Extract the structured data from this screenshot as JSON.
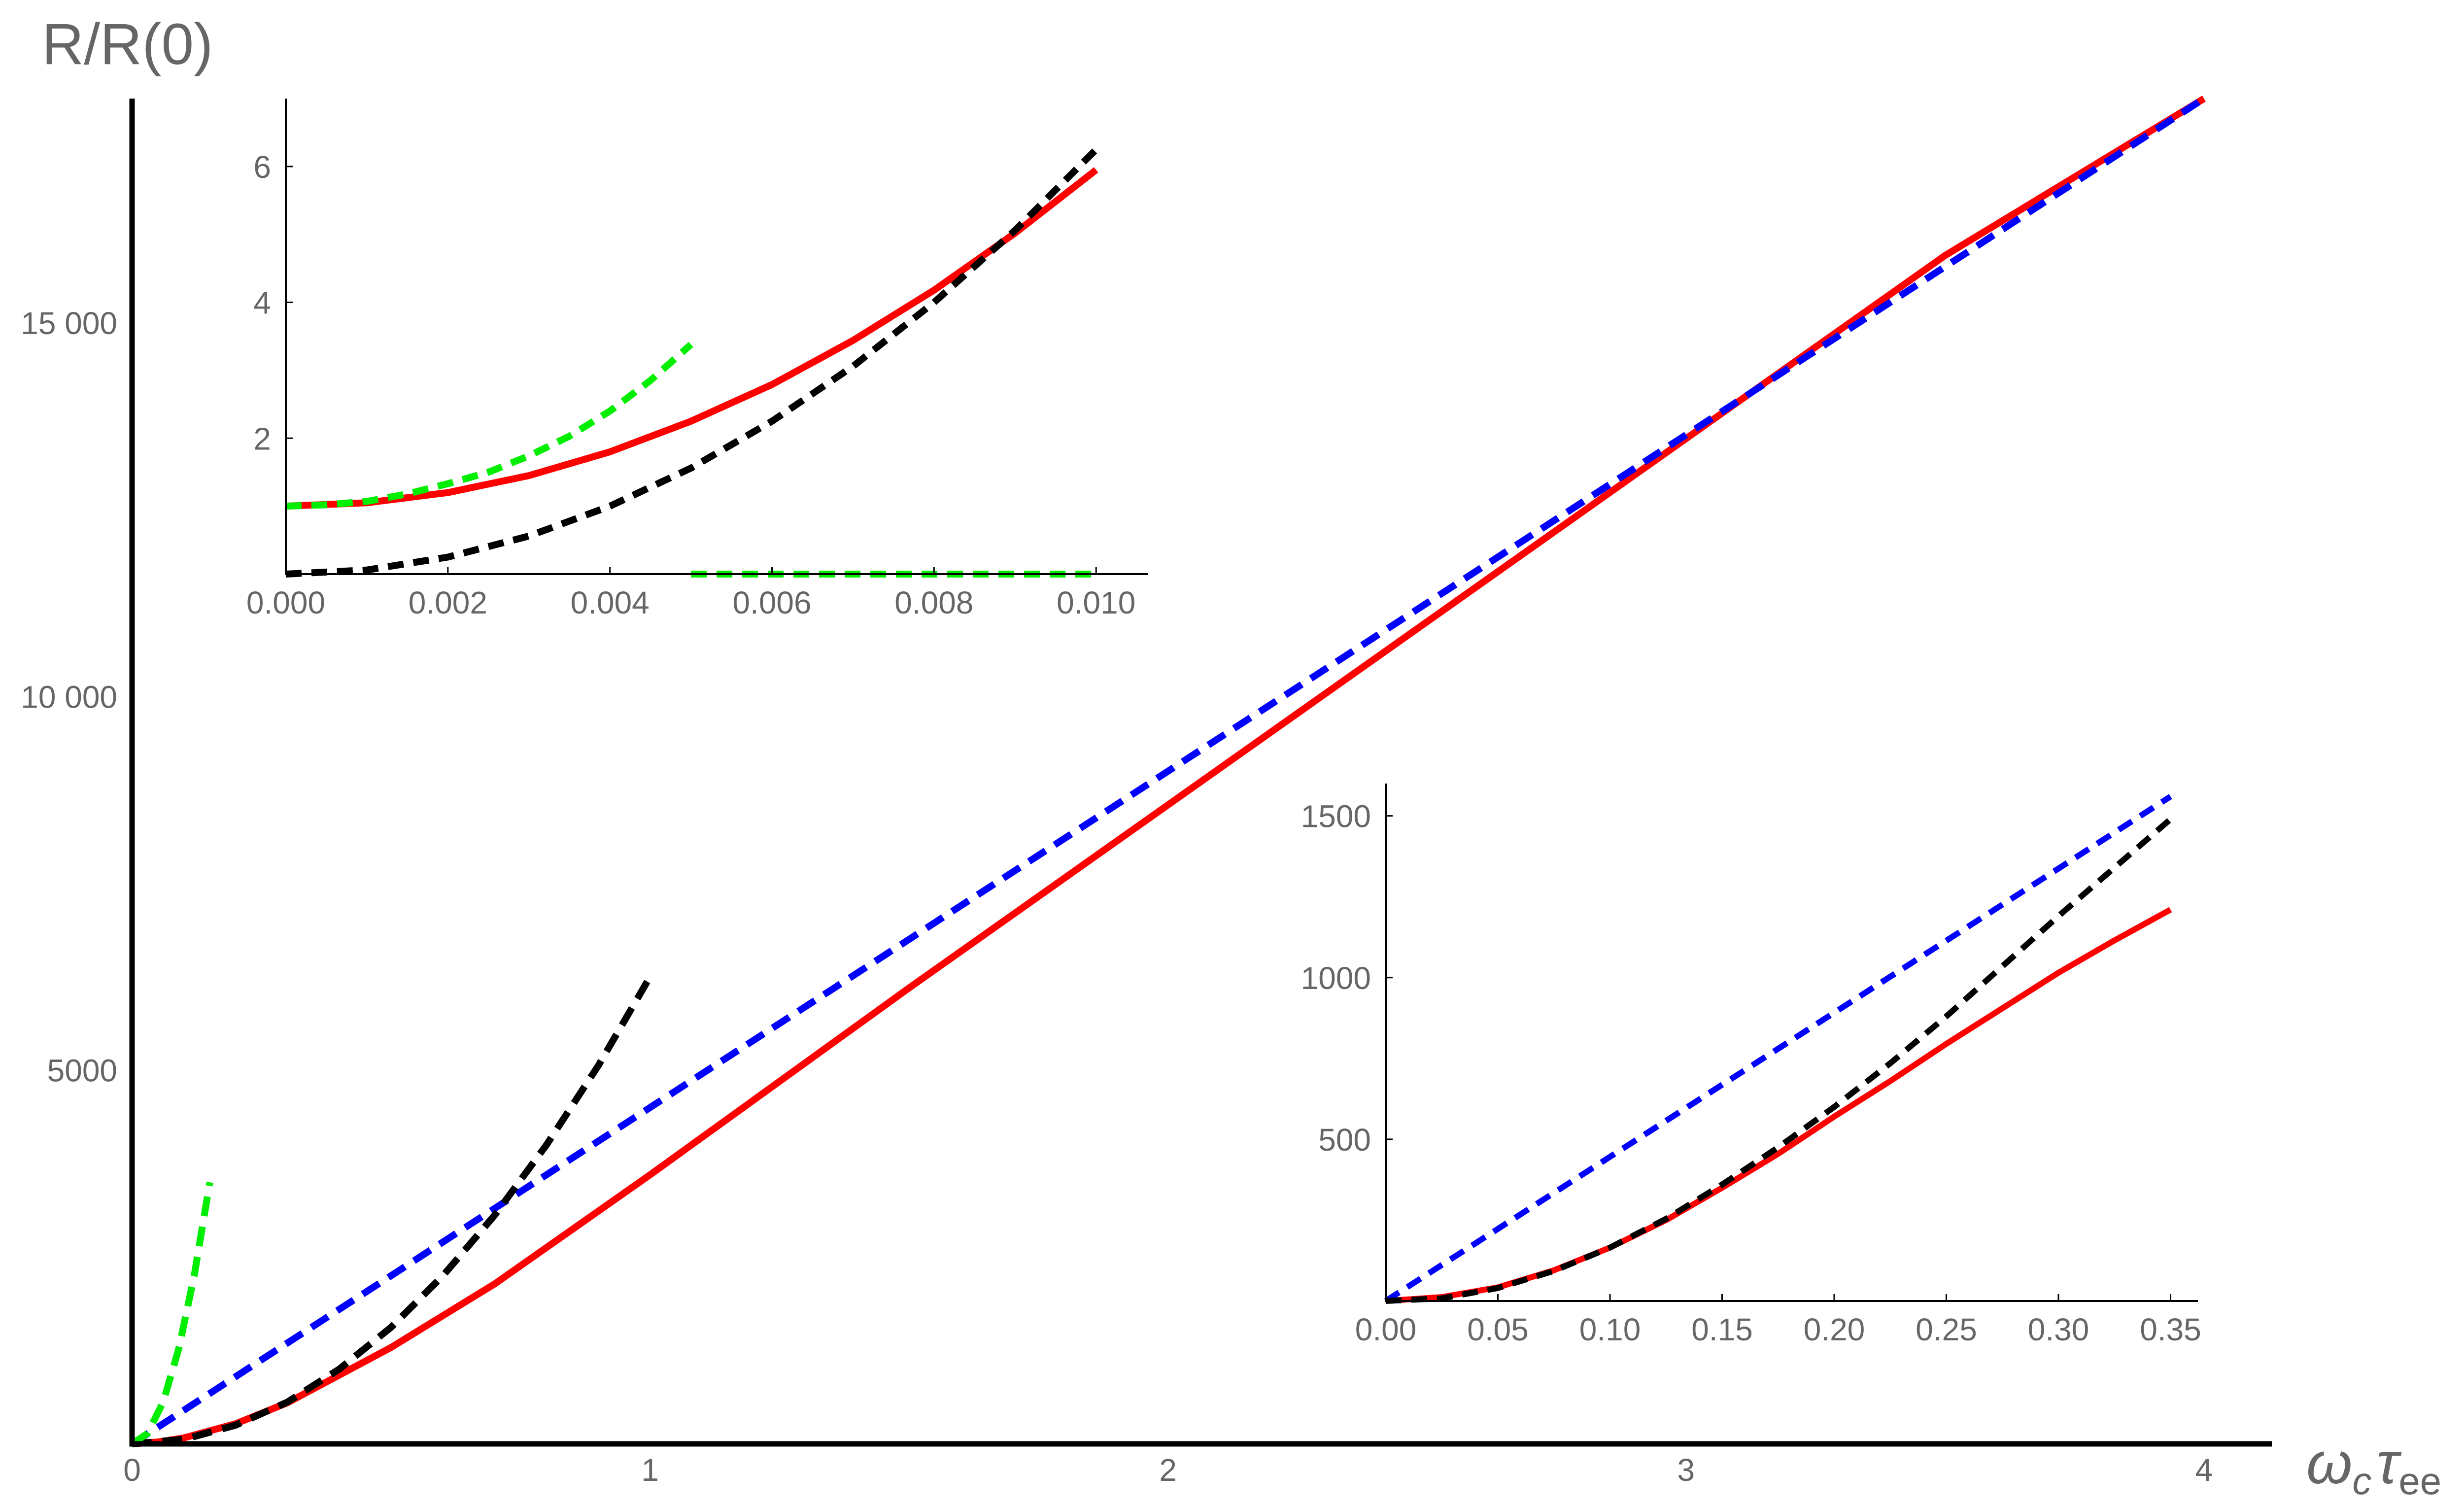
{
  "chart_data": [
    {
      "type": "line",
      "xlabel": "ωcτee",
      "xlabel_parts": {
        "main": "ω",
        "sub1": "c",
        "mid": "τ",
        "sub2": "ee"
      },
      "ylabel": "R/R(0)",
      "xlim": [
        0,
        4.05
      ],
      "ylim": [
        0,
        18000
      ],
      "xticks": [
        0,
        1,
        2,
        3,
        4
      ],
      "xtick_labels": [
        "0",
        "1",
        "2",
        "3",
        "4"
      ],
      "yticks": [
        5000,
        10000,
        15000
      ],
      "ytick_labels": [
        "5000",
        "10 000",
        "15 000"
      ],
      "series": [
        {
          "color": "#ff0000",
          "dashed": false,
          "x": [
            0,
            0.05,
            0.1,
            0.2,
            0.3,
            0.5,
            0.7,
            1.0,
            1.5,
            2.0,
            2.5,
            3.0,
            3.5,
            4.0
          ],
          "y": [
            0,
            25,
            80,
            270,
            550,
            1290,
            2140,
            3600,
            6100,
            8550,
            11000,
            13450,
            15900,
            18000
          ]
        },
        {
          "color": "#0000ff",
          "dashed": true,
          "x": [
            0,
            4.0
          ],
          "y": [
            0,
            18000
          ]
        },
        {
          "color": "#000000",
          "dashed": true,
          "x": [
            0,
            0.1,
            0.2,
            0.3,
            0.4,
            0.5,
            0.6,
            0.7,
            0.8,
            0.9,
            1.0
          ],
          "y": [
            0,
            60,
            250,
            560,
            1000,
            1560,
            2250,
            3060,
            4000,
            5060,
            6250
          ]
        },
        {
          "color": "#00ee00",
          "dashed": true,
          "x": [
            0,
            0.03,
            0.06,
            0.09,
            0.12,
            0.15
          ],
          "y": [
            0,
            140,
            560,
            1270,
            2250,
            3500
          ]
        }
      ]
    },
    {
      "type": "line",
      "inset": "top-left",
      "xlim": [
        0,
        0.0104
      ],
      "ylim": [
        0,
        7.0
      ],
      "xticks": [
        0,
        0.002,
        0.004,
        0.006,
        0.008,
        0.01
      ],
      "xtick_labels": [
        "0.000",
        "0.002",
        "0.004",
        "0.006",
        "0.008",
        "0.010"
      ],
      "yticks": [
        2,
        4,
        6
      ],
      "ytick_labels": [
        "2",
        "4",
        "6"
      ],
      "series": [
        {
          "color": "#ff0000",
          "dashed": false,
          "x": [
            0,
            0.001,
            0.002,
            0.003,
            0.004,
            0.005,
            0.006,
            0.007,
            0.008,
            0.009,
            0.01
          ],
          "y": [
            1.0,
            1.05,
            1.2,
            1.45,
            1.8,
            2.25,
            2.79,
            3.44,
            4.18,
            5.02,
            5.95
          ]
        },
        {
          "color": "#000000",
          "dashed": true,
          "x": [
            0,
            0.001,
            0.002,
            0.003,
            0.004,
            0.005,
            0.006,
            0.007,
            0.008,
            0.009,
            0.01
          ],
          "y": [
            0,
            0.06,
            0.25,
            0.56,
            1.0,
            1.56,
            2.25,
            3.06,
            4.0,
            5.06,
            6.25
          ]
        },
        {
          "color": "#00ee00",
          "dashed": true,
          "x": [
            0,
            0.0005,
            0.001,
            0.0015,
            0.002,
            0.0025,
            0.003,
            0.0035,
            0.004,
            0.0045,
            0.005
          ],
          "y": [
            1.0,
            1.02,
            1.07,
            1.18,
            1.33,
            1.5,
            1.74,
            2.03,
            2.4,
            2.85,
            3.38
          ]
        },
        {
          "color": "#00ee00",
          "dashed": true,
          "x": [
            0.005,
            0.01
          ],
          "y": [
            0,
            0
          ]
        }
      ]
    },
    {
      "type": "line",
      "inset": "bottom-right",
      "xlim": [
        0,
        0.36
      ],
      "ylim": [
        0,
        1600
      ],
      "xticks": [
        0,
        0.05,
        0.1,
        0.15,
        0.2,
        0.25,
        0.3,
        0.35
      ],
      "xtick_labels": [
        "0.00",
        "0.05",
        "0.10",
        "0.15",
        "0.20",
        "0.25",
        "0.30",
        "0.35"
      ],
      "yticks": [
        500,
        1000,
        1500
      ],
      "ytick_labels": [
        "500",
        "1000",
        "1500"
      ],
      "series": [
        {
          "color": "#ff0000",
          "dashed": false,
          "x": [
            0,
            0.025,
            0.05,
            0.075,
            0.1,
            0.125,
            0.15,
            0.175,
            0.2,
            0.225,
            0.25,
            0.275,
            0.3,
            0.325,
            0.35
          ],
          "y": [
            0,
            12,
            42,
            95,
            165,
            250,
            350,
            455,
            570,
            680,
            795,
            905,
            1015,
            1115,
            1210
          ]
        },
        {
          "color": "#0000ff",
          "dashed": true,
          "x": [
            0,
            0.35
          ],
          "y": [
            0,
            1560
          ]
        },
        {
          "color": "#000000",
          "dashed": true,
          "x": [
            0,
            0.025,
            0.05,
            0.075,
            0.1,
            0.125,
            0.15,
            0.175,
            0.2,
            0.225,
            0.25,
            0.275,
            0.3,
            0.325,
            0.35
          ],
          "y": [
            0,
            8,
            40,
            93,
            165,
            254,
            360,
            475,
            600,
            735,
            880,
            1035,
            1190,
            1340,
            1490
          ]
        }
      ]
    }
  ]
}
